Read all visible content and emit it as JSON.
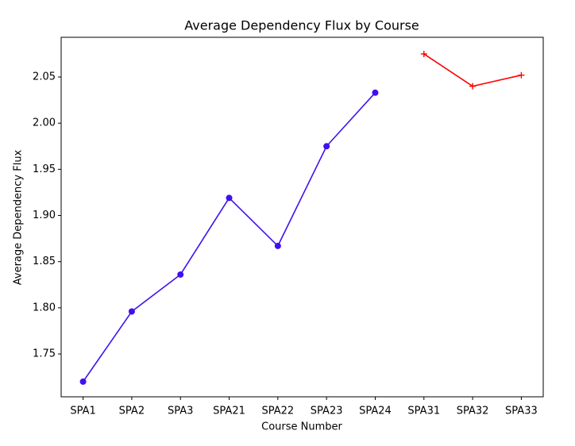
{
  "chart_data": {
    "type": "line",
    "title": "Average Dependency Flux by Course",
    "xlabel": "Course Number",
    "ylabel": "Average Dependency Flux",
    "categories": [
      "SPA1",
      "SPA2",
      "SPA3",
      "SPA21",
      "SPA22",
      "SPA23",
      "SPA24",
      "SPA31",
      "SPA32",
      "SPA33"
    ],
    "series": [
      {
        "color": "#3f10f0",
        "marker": "o",
        "values": [
          1.72,
          1.796,
          1.836,
          1.919,
          1.867,
          1.975,
          2.033,
          null,
          null,
          null
        ]
      },
      {
        "color": "#ff0000",
        "marker": "+",
        "values": [
          null,
          null,
          null,
          null,
          null,
          null,
          null,
          2.075,
          2.04,
          2.052
        ]
      }
    ],
    "ylim": [
      1.7036,
      2.093
    ],
    "yticks": [
      1.75,
      {
        "value": 1.8,
        "label": "1.80"
      },
      1.85,
      {
        "value": 1.9,
        "label": "1.90"
      },
      1.95,
      {
        "value": 2.0,
        "label": "2.00"
      },
      2.05
    ],
    "grid": false
  }
}
